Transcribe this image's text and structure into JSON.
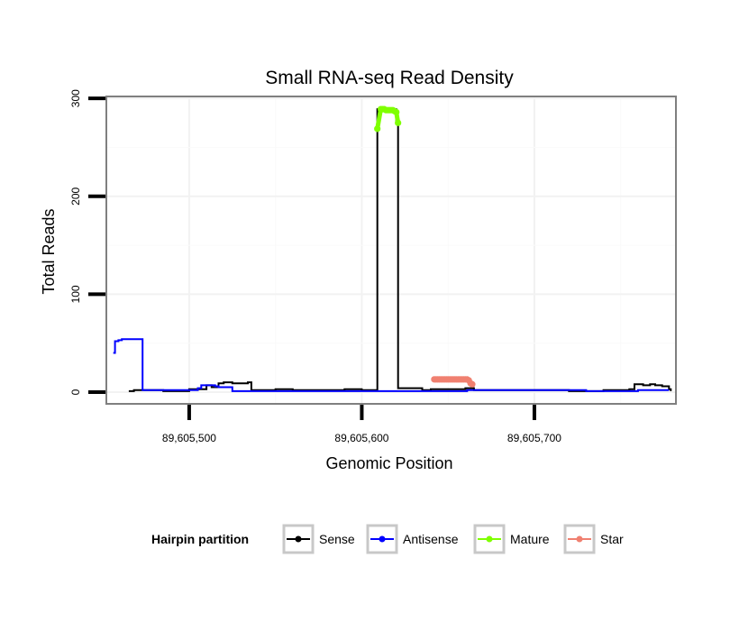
{
  "chart_data": {
    "type": "line",
    "title": "Small RNA-seq Read Density",
    "xlabel": "Genomic Position",
    "ylabel": "Total Reads",
    "xlim": [
      89605452,
      89605782
    ],
    "ylim": [
      -12,
      302
    ],
    "x_ticks": [
      {
        "value": 89605500,
        "label": "89,605,500"
      },
      {
        "value": 89605600,
        "label": "89,605,600"
      },
      {
        "value": 89605700,
        "label": "89,605,700"
      }
    ],
    "y_ticks": [
      {
        "value": 0,
        "label": "0"
      },
      {
        "value": 100,
        "label": "100"
      },
      {
        "value": 200,
        "label": "200"
      },
      {
        "value": 300,
        "label": "300"
      }
    ],
    "grid": true,
    "legend": {
      "title": "Hairpin partition",
      "position": "bottom",
      "entries": [
        "Sense",
        "Antisense",
        "Mature",
        "Star"
      ]
    },
    "series": [
      {
        "name": "Sense",
        "color": "#000000",
        "kind": "line",
        "x": [
          89605465,
          89605468,
          89605480,
          89605485,
          89605492,
          89605500,
          89605505,
          89605510,
          89605513,
          89605517,
          89605520,
          89605523,
          89605525,
          89605530,
          89605534,
          89605536,
          89605545,
          89605550,
          89605560,
          89605580,
          89605590,
          89605600,
          89605608,
          89605609,
          89605618,
          89605620,
          89605621,
          89605630,
          89605635,
          89605640,
          89605642,
          89605660,
          89605662,
          89605664,
          89605665,
          89605680,
          89605700,
          89605720,
          89605740,
          89605750,
          89605755,
          89605758,
          89605763,
          89605767,
          89605770,
          89605772,
          89605774,
          89605777,
          89605778,
          89605779
        ],
        "y": [
          1,
          2,
          2,
          1,
          1,
          3,
          3,
          7,
          5,
          9,
          10,
          10,
          9,
          9,
          10,
          2,
          2,
          3,
          2,
          2,
          3,
          2,
          2,
          289,
          289,
          275,
          4,
          4,
          2,
          3,
          3,
          4,
          4,
          4,
          2,
          2,
          2,
          1,
          2,
          2,
          3,
          8,
          7,
          8,
          7,
          7,
          6,
          6,
          3,
          1
        ]
      },
      {
        "name": "Antisense",
        "color": "#0000ff",
        "kind": "line",
        "x": [
          89605456,
          89605457,
          89605459,
          89605461,
          89605464,
          89605472,
          89605473,
          89605480,
          89605497,
          89605505,
          89605507,
          89605510,
          89605515,
          89605517,
          89605520,
          89605525,
          89605600,
          89605620,
          89605660,
          89605661,
          89605720,
          89605730,
          89605750,
          89605760,
          89605770,
          89605778
        ],
        "y": [
          40,
          52,
          53,
          54,
          54,
          54,
          2,
          2,
          2,
          4,
          7,
          7,
          6,
          5,
          5,
          1,
          1,
          1,
          1,
          2,
          2,
          1,
          1,
          2,
          2,
          2
        ]
      },
      {
        "name": "Mature",
        "color": "#7fff00",
        "kind": "points",
        "x": [
          89605609,
          89605611,
          89605612,
          89605613,
          89605614,
          89605615,
          89605616,
          89605617,
          89605618,
          89605619,
          89605620,
          89605621
        ],
        "y": [
          269,
          289,
          289,
          289,
          288,
          288,
          288,
          288,
          288,
          287,
          286,
          275
        ]
      },
      {
        "name": "Star",
        "color": "#f08070",
        "kind": "points",
        "x": [
          89605642,
          89605643,
          89605644,
          89605645,
          89605646,
          89605647,
          89605648,
          89605649,
          89605650,
          89605651,
          89605652,
          89605653,
          89605654,
          89605655,
          89605656,
          89605657,
          89605658,
          89605659,
          89605660,
          89605661,
          89605662,
          89605663,
          89605664
        ],
        "y": [
          13,
          13,
          13,
          13,
          13,
          13,
          13,
          13,
          13,
          13,
          13,
          13,
          13,
          13,
          13,
          13,
          13,
          13,
          13,
          13,
          12,
          9,
          8
        ]
      }
    ]
  }
}
